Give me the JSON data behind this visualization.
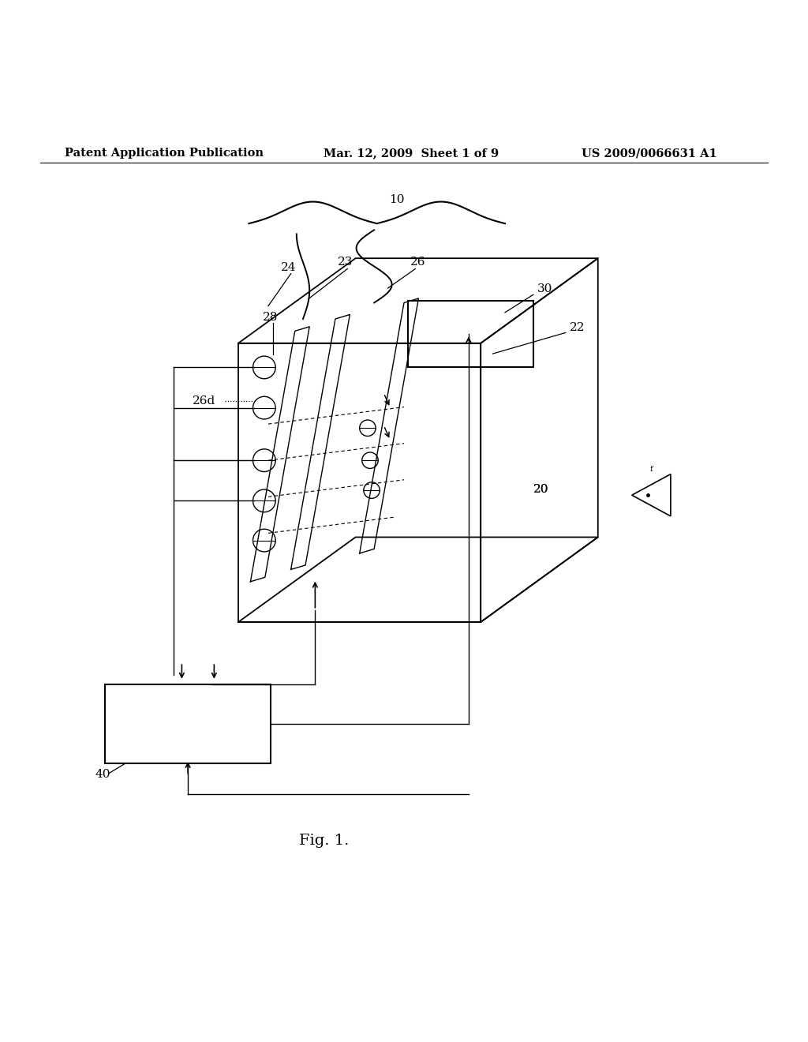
{
  "header_left": "Patent Application Publication",
  "header_mid": "Mar. 12, 2009  Sheet 1 of 9",
  "header_right": "US 2009/0066631 A1",
  "figure_label": "Fig. 1.",
  "background": "#ffffff",
  "line_color": "#000000"
}
